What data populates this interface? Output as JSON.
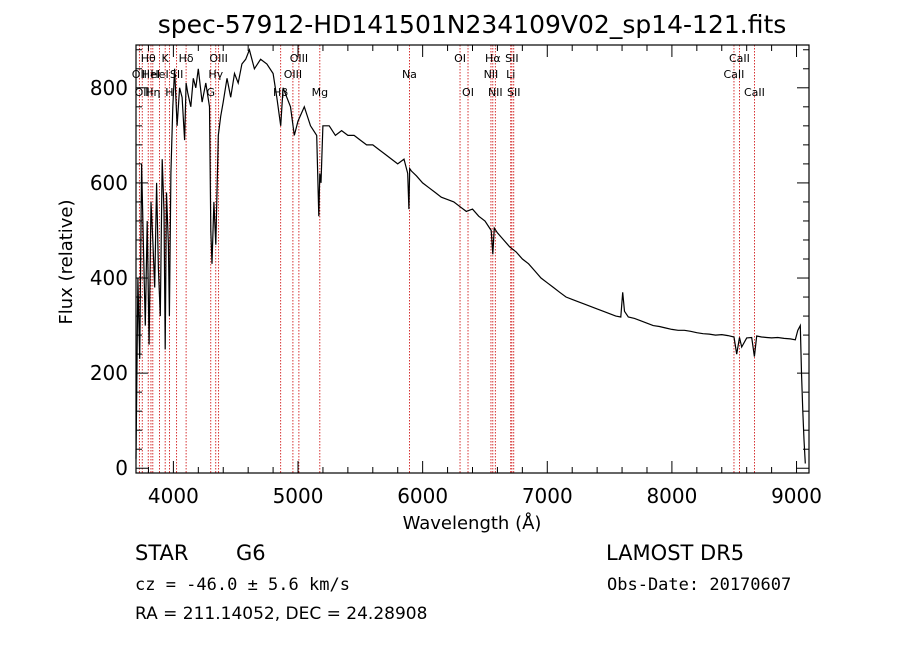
{
  "title": "spec-57912-HD141501N234109V02_sp14-121.fits",
  "xlabel": "Wavelength (Å)",
  "ylabel": "Flux (relative)",
  "info": {
    "class": "STAR",
    "subclass": "G6",
    "survey": "LAMOST DR5",
    "cz": "cz = -46.0 ± 5.6 km/s",
    "obs_date": "Obs-Date: 20170607",
    "radec": "RA = 211.14052, DEC =  24.28908"
  },
  "colors": {
    "spectrum": "#000000",
    "line_marker": "#cc0000",
    "axis": "#000000"
  },
  "chart_data": {
    "type": "line",
    "title": "spec-57912-HD141501N234109V02_sp14-121.fits",
    "xlabel": "Wavelength (Å)",
    "ylabel": "Flux (relative)",
    "xlim": [
      3700,
      9100
    ],
    "ylim": [
      -10,
      890
    ],
    "xticks": [
      4000,
      5000,
      6000,
      7000,
      8000,
      9000
    ],
    "yticks": [
      0,
      200,
      400,
      600,
      800
    ],
    "grid": false,
    "series": [
      {
        "x": [
          3700,
          3715,
          3730,
          3745,
          3760,
          3775,
          3790,
          3805,
          3820,
          3835,
          3850,
          3865,
          3880,
          3895,
          3910,
          3925,
          3934,
          3945,
          3960,
          3968,
          3980,
          3995,
          4010,
          4030,
          4050,
          4070,
          4090,
          4102,
          4115,
          4140,
          4160,
          4180,
          4200,
          4230,
          4260,
          4290,
          4300,
          4310,
          4325,
          4340,
          4360,
          4380,
          4400,
          4430,
          4460,
          4490,
          4520,
          4550,
          4580,
          4610,
          4650,
          4700,
          4750,
          4800,
          4830,
          4861,
          4880,
          4910,
          4940,
          4970,
          5000,
          5050,
          5100,
          5150,
          5167,
          5175,
          5184,
          5200,
          5250,
          5300,
          5350,
          5400,
          5450,
          5500,
          5550,
          5600,
          5650,
          5700,
          5750,
          5800,
          5850,
          5880,
          5890,
          5896,
          5910,
          5950,
          6000,
          6050,
          6100,
          6150,
          6200,
          6250,
          6300,
          6350,
          6400,
          6450,
          6500,
          6550,
          6563,
          6575,
          6600,
          6650,
          6700,
          6750,
          6800,
          6850,
          6900,
          6950,
          7000,
          7050,
          7100,
          7150,
          7200,
          7250,
          7300,
          7350,
          7400,
          7450,
          7500,
          7550,
          7590,
          7605,
          7620,
          7650,
          7700,
          7750,
          7800,
          7850,
          7900,
          7950,
          8000,
          8050,
          8100,
          8150,
          8200,
          8250,
          8300,
          8350,
          8400,
          8450,
          8498,
          8520,
          8542,
          8560,
          8600,
          8640,
          8662,
          8680,
          8720,
          8760,
          8800,
          8850,
          8900,
          8950,
          8990,
          9010,
          9030,
          9040,
          9050,
          9060,
          9070
        ],
        "y": [
          20,
          400,
          230,
          640,
          460,
          300,
          520,
          260,
          560,
          480,
          380,
          600,
          420,
          320,
          650,
          540,
          250,
          580,
          470,
          320,
          620,
          760,
          840,
          720,
          800,
          780,
          690,
          810,
          790,
          760,
          820,
          800,
          840,
          770,
          810,
          760,
          500,
          430,
          560,
          470,
          700,
          740,
          770,
          820,
          780,
          830,
          810,
          850,
          860,
          880,
          840,
          860,
          850,
          830,
          780,
          720,
          800,
          780,
          760,
          700,
          730,
          760,
          720,
          700,
          530,
          620,
          600,
          720,
          720,
          700,
          710,
          700,
          700,
          690,
          680,
          680,
          670,
          660,
          650,
          640,
          650,
          620,
          545,
          630,
          625,
          615,
          600,
          590,
          580,
          570,
          565,
          560,
          550,
          540,
          545,
          530,
          520,
          500,
          450,
          505,
          495,
          480,
          465,
          455,
          440,
          430,
          415,
          400,
          390,
          380,
          370,
          360,
          355,
          350,
          345,
          340,
          335,
          330,
          325,
          320,
          318,
          370,
          330,
          318,
          315,
          310,
          305,
          300,
          298,
          295,
          292,
          290,
          290,
          288,
          285,
          283,
          282,
          280,
          281,
          279,
          276,
          240,
          275,
          255,
          274,
          275,
          235,
          278,
          276,
          275,
          274,
          275,
          273,
          272,
          270,
          290,
          300,
          200,
          120,
          60,
          10
        ]
      }
    ],
    "lines": [
      {
        "lambda": 3727,
        "label": "OII",
        "row": 2
      },
      {
        "lambda": 3750,
        "label": "OII",
        "row": 3
      },
      {
        "lambda": 3798,
        "label": "Hθ",
        "row": 1
      },
      {
        "lambda": 3820,
        "label": "HeI",
        "row": 2
      },
      {
        "lambda": 3835,
        "label": "Hη",
        "row": 3
      },
      {
        "lambda": 3889,
        "label": "HeI",
        "row": 2
      },
      {
        "lambda": 3934,
        "label": "K",
        "row": 1
      },
      {
        "lambda": 3968,
        "label": "H",
        "row": 3
      },
      {
        "lambda": 4026,
        "label": "SII",
        "row": 2
      },
      {
        "lambda": 4102,
        "label": "Hδ",
        "row": 1
      },
      {
        "lambda": 4300,
        "label": "G",
        "row": 3
      },
      {
        "lambda": 4340,
        "label": "Hγ",
        "row": 2
      },
      {
        "lambda": 4363,
        "label": "OIII",
        "row": 1
      },
      {
        "lambda": 4861,
        "label": "Hβ",
        "row": 3
      },
      {
        "lambda": 4959,
        "label": "OIII",
        "row": 2
      },
      {
        "lambda": 5007,
        "label": "OIII",
        "row": 1
      },
      {
        "lambda": 5175,
        "label": "Mg",
        "row": 3
      },
      {
        "lambda": 5894,
        "label": "Na",
        "row": 2
      },
      {
        "lambda": 6300,
        "label": "OI",
        "row": 1
      },
      {
        "lambda": 6364,
        "label": "OI",
        "row": 3
      },
      {
        "lambda": 6548,
        "label": "NII",
        "row": 2
      },
      {
        "lambda": 6563,
        "label": "Hα",
        "row": 1
      },
      {
        "lambda": 6583,
        "label": "NII",
        "row": 3
      },
      {
        "lambda": 6707,
        "label": "Li",
        "row": 2
      },
      {
        "lambda": 6716,
        "label": "SII",
        "row": 1
      },
      {
        "lambda": 6731,
        "label": "SII",
        "row": 3
      },
      {
        "lambda": 8498,
        "label": "CaII",
        "row": 2
      },
      {
        "lambda": 8542,
        "label": "CaII",
        "row": 1
      },
      {
        "lambda": 8662,
        "label": "CaII",
        "row": 3
      }
    ]
  }
}
